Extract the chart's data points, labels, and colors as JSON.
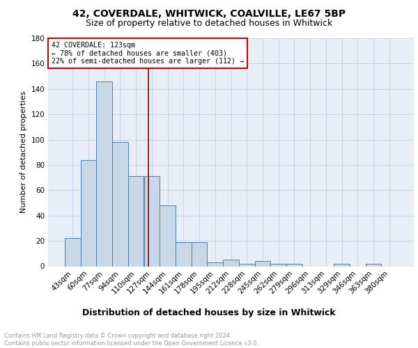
{
  "title1": "42, COVERDALE, WHITWICK, COALVILLE, LE67 5BP",
  "title2": "Size of property relative to detached houses in Whitwick",
  "xlabel": "Distribution of detached houses by size in Whitwick",
  "ylabel": "Number of detached properties",
  "bin_labels": [
    "43sqm",
    "60sqm",
    "77sqm",
    "94sqm",
    "110sqm",
    "127sqm",
    "144sqm",
    "161sqm",
    "178sqm",
    "195sqm",
    "212sqm",
    "228sqm",
    "245sqm",
    "262sqm",
    "279sqm",
    "296sqm",
    "313sqm",
    "329sqm",
    "346sqm",
    "363sqm",
    "380sqm"
  ],
  "bar_values": [
    22,
    84,
    146,
    98,
    71,
    71,
    48,
    19,
    19,
    3,
    5,
    2,
    4,
    2,
    2,
    0,
    0,
    2,
    0,
    2,
    0
  ],
  "bar_color": "#c8d8e8",
  "bar_edge_color": "#4a7fb5",
  "annotation_text_line1": "42 COVERDALE: 123sqm",
  "annotation_text_line2": "← 78% of detached houses are smaller (403)",
  "annotation_text_line3": "22% of semi-detached houses are larger (112) →",
  "annotation_box_color": "#ffffff",
  "annotation_box_edge": "#cc0000",
  "vline_color": "#8b0000",
  "ylim": [
    0,
    180
  ],
  "yticks": [
    0,
    20,
    40,
    60,
    80,
    100,
    120,
    140,
    160,
    180
  ],
  "grid_color": "#c8d4e8",
  "bg_color": "#e8eef8",
  "footnote": "Contains HM Land Registry data © Crown copyright and database right 2024.\nContains public sector information licensed under the Open Government Licence v3.0.",
  "title1_fontsize": 10,
  "title2_fontsize": 9,
  "xlabel_fontsize": 9,
  "ylabel_fontsize": 8,
  "tick_fontsize": 7.5,
  "footnote_fontsize": 6,
  "footnote_color": "#999999"
}
